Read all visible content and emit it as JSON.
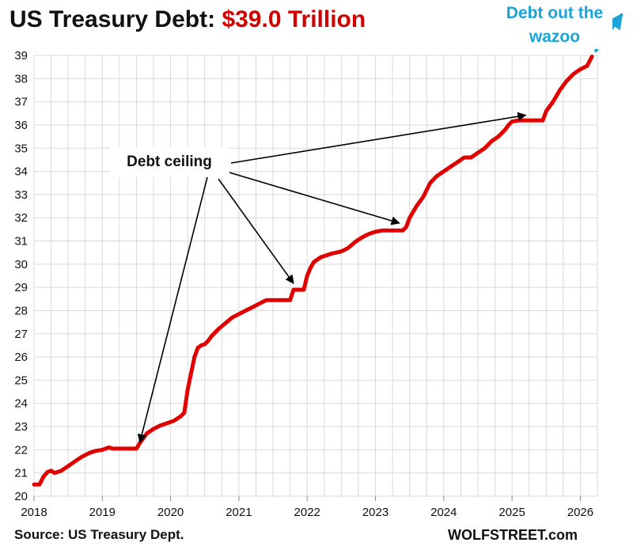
{
  "header": {
    "title_prefix": "US Treasury Debt:",
    "title_value": "$39.0 Trillion"
  },
  "footer": {
    "source": "Source: US Treasury Dept.",
    "brand": "WOLFSTREET.com"
  },
  "colors": {
    "line": "#e00000",
    "title_value": "#d10000",
    "annotation_arrow": "#1aa3d6",
    "grid": "#d9d9d9",
    "text": "#111111"
  },
  "chart_data": {
    "type": "line",
    "title": "US Treasury Debt: $39.0 Trillion",
    "xlabel": "",
    "ylabel": "",
    "xlim": [
      2018,
      2026.25
    ],
    "ylim": [
      20,
      39
    ],
    "grid": true,
    "x_ticks": [
      "2018",
      "2019",
      "2020",
      "2021",
      "2022",
      "2023",
      "2024",
      "2025",
      "2026"
    ],
    "y_ticks": [
      "20",
      "21",
      "22",
      "23",
      "24",
      "25",
      "26",
      "27",
      "28",
      "29",
      "30",
      "31",
      "32",
      "33",
      "34",
      "35",
      "36",
      "37",
      "38",
      "39"
    ],
    "series": [
      {
        "x": [
          2018.0,
          2018.08,
          2018.14,
          2018.2,
          2018.25,
          2018.3,
          2018.4,
          2018.5,
          2018.6,
          2018.7,
          2018.8,
          2018.9,
          2019.0,
          2019.1,
          2019.15,
          2019.3,
          2019.5,
          2019.55,
          2019.6,
          2019.65,
          2019.75,
          2019.85,
          2019.95,
          2020.05,
          2020.15,
          2020.2,
          2020.25,
          2020.3,
          2020.35,
          2020.4,
          2020.45,
          2020.5,
          2020.55,
          2020.6,
          2020.7,
          2020.8,
          2020.9,
          2021.0,
          2021.1,
          2021.2,
          2021.3,
          2021.4,
          2021.5,
          2021.6,
          2021.75,
          2021.8,
          2021.95,
          2022.0,
          2022.05,
          2022.1,
          2022.2,
          2022.35,
          2022.5,
          2022.6,
          2022.7,
          2022.8,
          2022.9,
          2023.0,
          2023.1,
          2023.3,
          2023.4,
          2023.45,
          2023.5,
          2023.6,
          2023.7,
          2023.8,
          2023.9,
          2024.0,
          2024.1,
          2024.2,
          2024.3,
          2024.4,
          2024.5,
          2024.6,
          2024.7,
          2024.8,
          2024.9,
          2024.95,
          2025.0,
          2025.1,
          2025.3,
          2025.45,
          2025.5,
          2025.6,
          2025.7,
          2025.8,
          2025.9,
          2026.0,
          2026.1,
          2026.17
        ],
        "values": [
          20.5,
          20.5,
          20.85,
          21.05,
          21.1,
          21.0,
          21.1,
          21.3,
          21.5,
          21.7,
          21.85,
          21.95,
          22.0,
          22.1,
          22.05,
          22.05,
          22.05,
          22.3,
          22.5,
          22.7,
          22.9,
          23.05,
          23.15,
          23.25,
          23.45,
          23.6,
          24.6,
          25.3,
          26.0,
          26.4,
          26.5,
          26.55,
          26.7,
          26.9,
          27.2,
          27.45,
          27.7,
          27.85,
          28.0,
          28.15,
          28.3,
          28.45,
          28.45,
          28.45,
          28.45,
          28.9,
          28.9,
          29.5,
          29.85,
          30.1,
          30.3,
          30.45,
          30.55,
          30.7,
          30.95,
          31.15,
          31.3,
          31.4,
          31.45,
          31.45,
          31.45,
          31.6,
          32.0,
          32.5,
          32.9,
          33.5,
          33.8,
          34.0,
          34.2,
          34.4,
          34.6,
          34.6,
          34.8,
          35.0,
          35.3,
          35.5,
          35.8,
          36.0,
          36.15,
          36.2,
          36.2,
          36.2,
          36.6,
          37.0,
          37.5,
          37.9,
          38.2,
          38.4,
          38.55,
          38.95
        ]
      }
    ],
    "annotations": [
      {
        "text": "Debt ceiling",
        "targets": [
          [
            2019.55,
            22.05
          ],
          [
            2021.8,
            28.9
          ],
          [
            2023.35,
            31.5
          ],
          [
            2025.2,
            36.15
          ]
        ]
      },
      {
        "text_lines": [
          "Debt out the",
          "wazoo"
        ]
      }
    ]
  }
}
